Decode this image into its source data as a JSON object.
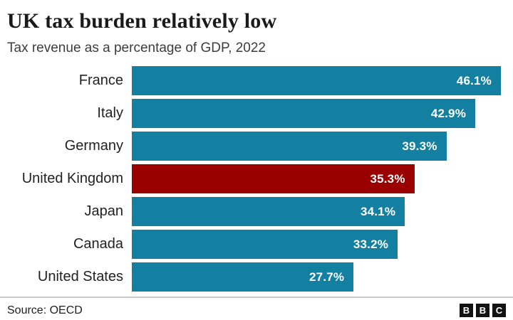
{
  "header": {
    "title": "UK tax burden relatively low",
    "subtitle": "Tax revenue as a percentage of GDP, 2022"
  },
  "chart_data": {
    "type": "bar",
    "orientation": "horizontal",
    "title": "UK tax burden relatively low",
    "subtitle": "Tax revenue as a percentage of GDP, 2022",
    "categories": [
      "France",
      "Italy",
      "Germany",
      "United Kingdom",
      "Japan",
      "Canada",
      "United States"
    ],
    "values": [
      46.1,
      42.9,
      39.3,
      35.3,
      34.1,
      33.2,
      27.7
    ],
    "value_labels": [
      "46.1%",
      "42.9%",
      "39.3%",
      "35.3%",
      "34.1%",
      "33.2%",
      "27.7%"
    ],
    "xlim": [
      0,
      46.1
    ],
    "grid": false,
    "value_label_position": "inside-end",
    "value_label_color": "#ffffff",
    "bar_color": "#1380A1",
    "highlight_color": "#9A0000",
    "highlight_index": 3,
    "highlight_category": "United Kingdom"
  },
  "footer": {
    "source": "Source: OECD",
    "logo_letters": [
      "B",
      "B",
      "C"
    ]
  }
}
